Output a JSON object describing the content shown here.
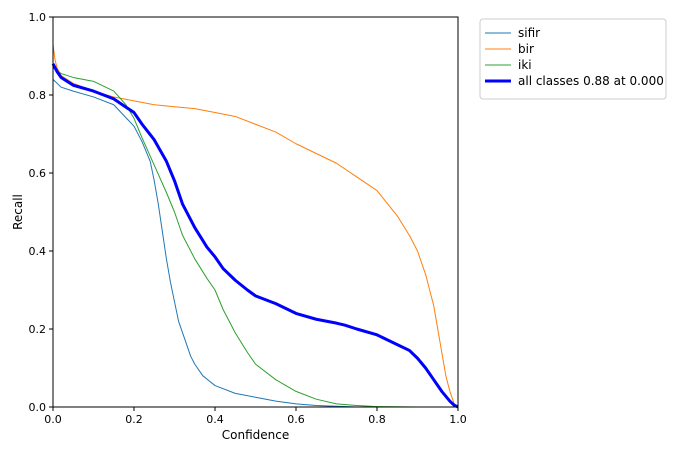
{
  "chart_data": {
    "type": "line",
    "title": "",
    "xlabel": "Confidence",
    "ylabel": "Recall",
    "xlim": [
      0.0,
      1.0
    ],
    "ylim": [
      0.0,
      1.0
    ],
    "xticks": [
      "0.0",
      "0.2",
      "0.4",
      "0.6",
      "0.8",
      "1.0"
    ],
    "yticks": [
      "0.0",
      "0.2",
      "0.4",
      "0.6",
      "0.8",
      "1.0"
    ],
    "grid": false,
    "legend_position": "outside-top-right",
    "series": [
      {
        "name": "sifir",
        "color": "#1f77b4",
        "width": 1,
        "x": [
          0.0,
          0.02,
          0.05,
          0.1,
          0.15,
          0.2,
          0.22,
          0.24,
          0.25,
          0.26,
          0.27,
          0.28,
          0.29,
          0.3,
          0.31,
          0.32,
          0.33,
          0.34,
          0.35,
          0.37,
          0.4,
          0.45,
          0.5,
          0.55,
          0.6,
          0.65,
          0.7,
          0.75,
          0.8,
          0.9,
          1.0
        ],
        "y": [
          0.84,
          0.82,
          0.81,
          0.795,
          0.775,
          0.72,
          0.68,
          0.63,
          0.58,
          0.52,
          0.45,
          0.38,
          0.32,
          0.27,
          0.22,
          0.19,
          0.16,
          0.13,
          0.11,
          0.08,
          0.055,
          0.035,
          0.025,
          0.015,
          0.008,
          0.004,
          0.002,
          0.0,
          0.0,
          0.0,
          0.0
        ]
      },
      {
        "name": "bir",
        "color": "#ff7f0e",
        "width": 1,
        "x": [
          0.0,
          0.005,
          0.01,
          0.02,
          0.05,
          0.1,
          0.15,
          0.2,
          0.25,
          0.3,
          0.35,
          0.4,
          0.45,
          0.5,
          0.55,
          0.6,
          0.65,
          0.7,
          0.75,
          0.8,
          0.85,
          0.88,
          0.9,
          0.92,
          0.94,
          0.95,
          0.96,
          0.97,
          0.98,
          0.99,
          1.0
        ],
        "y": [
          0.93,
          0.89,
          0.87,
          0.85,
          0.83,
          0.81,
          0.795,
          0.785,
          0.775,
          0.77,
          0.765,
          0.755,
          0.745,
          0.725,
          0.705,
          0.675,
          0.65,
          0.625,
          0.59,
          0.555,
          0.49,
          0.44,
          0.4,
          0.34,
          0.26,
          0.2,
          0.14,
          0.08,
          0.04,
          0.01,
          0.0
        ]
      },
      {
        "name": "iki",
        "color": "#2ca02c",
        "width": 1,
        "x": [
          0.0,
          0.02,
          0.05,
          0.1,
          0.15,
          0.18,
          0.2,
          0.22,
          0.25,
          0.28,
          0.3,
          0.32,
          0.35,
          0.38,
          0.4,
          0.42,
          0.45,
          0.48,
          0.5,
          0.55,
          0.6,
          0.65,
          0.7,
          0.75,
          0.8,
          0.9,
          1.0
        ],
        "y": [
          0.87,
          0.855,
          0.845,
          0.835,
          0.81,
          0.775,
          0.74,
          0.69,
          0.62,
          0.55,
          0.5,
          0.44,
          0.38,
          0.33,
          0.3,
          0.25,
          0.19,
          0.14,
          0.11,
          0.07,
          0.04,
          0.02,
          0.008,
          0.004,
          0.001,
          0.0,
          0.0
        ]
      },
      {
        "name": "all classes 0.88 at 0.000",
        "color": "#0000ff",
        "width": 3,
        "x": [
          0.0,
          0.01,
          0.02,
          0.05,
          0.1,
          0.15,
          0.2,
          0.22,
          0.25,
          0.28,
          0.3,
          0.32,
          0.35,
          0.38,
          0.4,
          0.42,
          0.45,
          0.48,
          0.5,
          0.55,
          0.6,
          0.65,
          0.7,
          0.72,
          0.75,
          0.8,
          0.85,
          0.88,
          0.9,
          0.92,
          0.94,
          0.96,
          0.98,
          0.99,
          1.0
        ],
        "y": [
          0.88,
          0.86,
          0.845,
          0.825,
          0.81,
          0.79,
          0.755,
          0.725,
          0.685,
          0.63,
          0.58,
          0.52,
          0.46,
          0.41,
          0.385,
          0.355,
          0.325,
          0.3,
          0.285,
          0.265,
          0.24,
          0.225,
          0.215,
          0.21,
          0.2,
          0.185,
          0.16,
          0.145,
          0.125,
          0.1,
          0.07,
          0.04,
          0.015,
          0.005,
          0.0
        ]
      }
    ]
  }
}
